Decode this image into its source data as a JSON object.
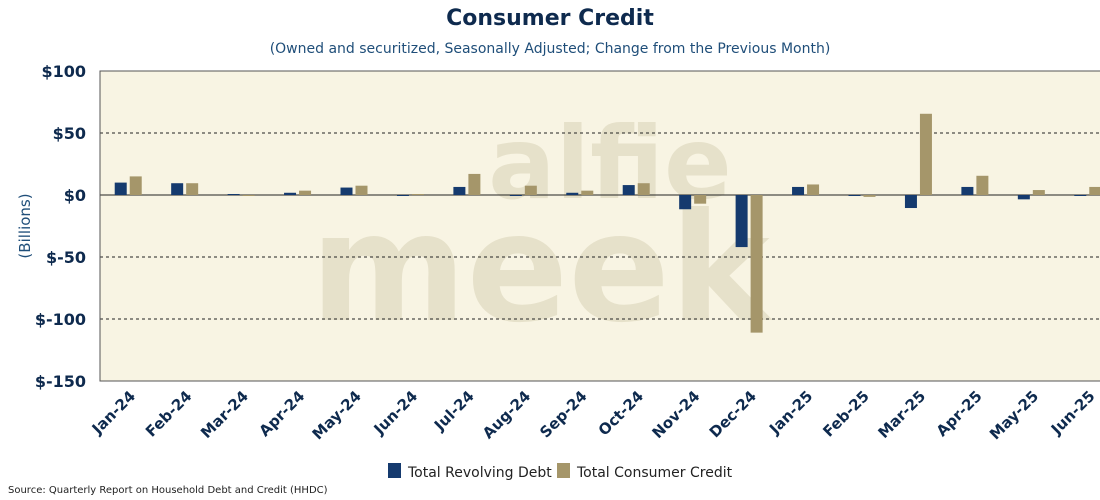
{
  "chart_data": {
    "type": "bar",
    "title": "Consumer Credit",
    "subtitle": "(Owned and securitized, Seasonally Adjusted; Change from the Previous Month)",
    "ylabel": "(Billions)",
    "xlabel": "",
    "ylim": [
      -150,
      100
    ],
    "yticks": [
      100,
      50,
      0,
      -50,
      -100,
      -150
    ],
    "ytick_labels": [
      "$100",
      "$50",
      "$0",
      "$-50",
      "$-100",
      "$-150"
    ],
    "categories": [
      "Jan-24",
      "Feb-24",
      "Mar-24",
      "Apr-24",
      "May-24",
      "Jun-24",
      "Jul-24",
      "Aug-24",
      "Sep-24",
      "Oct-24",
      "Nov-24",
      "Dec-24",
      "Jan-25",
      "Feb-25",
      "Mar-25",
      "Apr-25",
      "May-25",
      "Jun-25"
    ],
    "series": [
      {
        "name": "Total Revolving Debt",
        "color": "#153a6e",
        "values": [
          10,
          9.5,
          0.8,
          1.8,
          6,
          -0.8,
          6.5,
          -0.5,
          1.8,
          8,
          -11.5,
          -42,
          6.5,
          -0.5,
          -10.5,
          6.5,
          -3.5,
          -0.5
        ]
      },
      {
        "name": "Total Consumer Credit",
        "color": "#a5966a",
        "values": [
          15,
          9.5,
          -0.5,
          3.5,
          7.5,
          0.8,
          17,
          7.5,
          3.5,
          9.5,
          -7,
          -111,
          8.5,
          -1.5,
          65.5,
          15.5,
          4,
          6.5
        ]
      }
    ],
    "grid": "horizontal-dashed",
    "legend_position": "bottom-center",
    "colors": {
      "plot_background": "#f8f4e3",
      "axis_text": "#0e2a4e",
      "grid": "#222222"
    }
  },
  "watermark": {
    "line1": "alfie",
    "line2": "meek"
  },
  "source": "Source: Quarterly Report on Household Debt and Credit (HHDC)"
}
